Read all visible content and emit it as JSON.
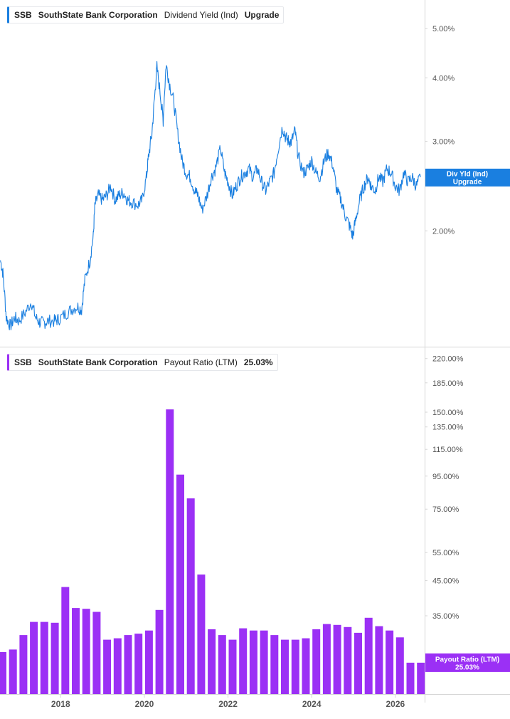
{
  "colors": {
    "yield_line": "#1a7fe0",
    "payout_bars": "#9b30f5",
    "axis": "#d6d6d6",
    "tick_text": "#555555"
  },
  "panels": {
    "top": {
      "ticker": "SSB",
      "company": "SouthState Bank Corporation",
      "metric": "Dividend Yield (Ind)",
      "value": "Upgrade"
    },
    "bottom": {
      "ticker": "SSB",
      "company": "SouthState Bank Corporation",
      "metric": "Payout Ratio (LTM)",
      "value": "25.03%"
    }
  },
  "chart_data": [
    {
      "type": "line",
      "title": "SSB SouthState Bank Corporation Dividend Yield (Ind)",
      "y_scale": "log",
      "ylim": [
        1.25,
        5.6
      ],
      "y_ticks": [
        "5.00%",
        "4.00%",
        "3.00%",
        "2.00%"
      ],
      "y_tick_values": [
        5.0,
        4.0,
        3.0,
        2.0
      ],
      "x_ticks": [
        "2018",
        "2020",
        "2022",
        "2024",
        "2026"
      ],
      "x_tick_values": [
        2018,
        2020,
        2022,
        2024,
        2026
      ],
      "xlim": [
        2016.55,
        2026.7
      ],
      "series": [
        {
          "name": "Div Yld (Ind)",
          "label_value": "Upgrade",
          "points": [
            [
              2016.56,
              1.75
            ],
            [
              2016.62,
              1.65
            ],
            [
              2016.7,
              1.35
            ],
            [
              2016.8,
              1.3
            ],
            [
              2016.9,
              1.35
            ],
            [
              2017.0,
              1.33
            ],
            [
              2017.15,
              1.38
            ],
            [
              2017.3,
              1.45
            ],
            [
              2017.4,
              1.35
            ],
            [
              2017.5,
              1.32
            ],
            [
              2017.6,
              1.32
            ],
            [
              2017.7,
              1.33
            ],
            [
              2017.85,
              1.33
            ],
            [
              2017.95,
              1.34
            ],
            [
              2018.1,
              1.37
            ],
            [
              2018.25,
              1.4
            ],
            [
              2018.4,
              1.42
            ],
            [
              2018.5,
              1.4
            ],
            [
              2018.58,
              1.6
            ],
            [
              2018.7,
              1.75
            ],
            [
              2018.78,
              1.95
            ],
            [
              2018.82,
              2.25
            ],
            [
              2018.9,
              2.35
            ],
            [
              2019.0,
              2.3
            ],
            [
              2019.1,
              2.35
            ],
            [
              2019.2,
              2.45
            ],
            [
              2019.3,
              2.3
            ],
            [
              2019.4,
              2.35
            ],
            [
              2019.5,
              2.38
            ],
            [
              2019.6,
              2.3
            ],
            [
              2019.7,
              2.28
            ],
            [
              2019.85,
              2.25
            ],
            [
              2019.95,
              2.3
            ],
            [
              2020.05,
              2.55
            ],
            [
              2020.1,
              2.8
            ],
            [
              2020.18,
              3.1
            ],
            [
              2020.25,
              3.7
            ],
            [
              2020.3,
              4.2
            ],
            [
              2020.4,
              3.6
            ],
            [
              2020.45,
              3.3
            ],
            [
              2020.52,
              4.25
            ],
            [
              2020.6,
              3.9
            ],
            [
              2020.7,
              3.6
            ],
            [
              2020.8,
              3.1
            ],
            [
              2020.9,
              2.75
            ],
            [
              2021.0,
              2.6
            ],
            [
              2021.1,
              2.55
            ],
            [
              2021.2,
              2.4
            ],
            [
              2021.28,
              2.35
            ],
            [
              2021.38,
              2.2
            ],
            [
              2021.5,
              2.35
            ],
            [
              2021.6,
              2.55
            ],
            [
              2021.7,
              2.65
            ],
            [
              2021.82,
              2.9
            ],
            [
              2021.92,
              2.6
            ],
            [
              2022.0,
              2.5
            ],
            [
              2022.1,
              2.35
            ],
            [
              2022.2,
              2.45
            ],
            [
              2022.3,
              2.55
            ],
            [
              2022.4,
              2.6
            ],
            [
              2022.5,
              2.65
            ],
            [
              2022.6,
              2.55
            ],
            [
              2022.7,
              2.65
            ],
            [
              2022.8,
              2.5
            ],
            [
              2022.9,
              2.4
            ],
            [
              2023.0,
              2.5
            ],
            [
              2023.1,
              2.6
            ],
            [
              2023.2,
              2.9
            ],
            [
              2023.3,
              3.2
            ],
            [
              2023.38,
              3.05
            ],
            [
              2023.45,
              3.0
            ],
            [
              2023.52,
              3.0
            ],
            [
              2023.6,
              3.15
            ],
            [
              2023.68,
              2.8
            ],
            [
              2023.8,
              2.6
            ],
            [
              2023.9,
              2.65
            ],
            [
              2024.0,
              2.75
            ],
            [
              2024.1,
              2.6
            ],
            [
              2024.2,
              2.55
            ],
            [
              2024.3,
              2.75
            ],
            [
              2024.4,
              2.85
            ],
            [
              2024.5,
              2.7
            ],
            [
              2024.6,
              2.4
            ],
            [
              2024.7,
              2.3
            ],
            [
              2024.8,
              2.15
            ],
            [
              2024.9,
              2.05
            ],
            [
              2024.98,
              1.95
            ],
            [
              2025.05,
              2.1
            ],
            [
              2025.15,
              2.3
            ],
            [
              2025.25,
              2.45
            ],
            [
              2025.35,
              2.55
            ],
            [
              2025.42,
              2.45
            ],
            [
              2025.52,
              2.4
            ],
            [
              2025.6,
              2.55
            ],
            [
              2025.7,
              2.5
            ],
            [
              2025.8,
              2.65
            ],
            [
              2025.9,
              2.6
            ],
            [
              2026.0,
              2.45
            ],
            [
              2026.1,
              2.4
            ],
            [
              2026.2,
              2.6
            ],
            [
              2026.3,
              2.5
            ],
            [
              2026.4,
              2.55
            ],
            [
              2026.5,
              2.45
            ],
            [
              2026.6,
              2.55
            ]
          ]
        }
      ]
    },
    {
      "type": "bar",
      "title": "SSB SouthState Bank Corporation Payout Ratio (LTM)",
      "y_scale": "log",
      "ylim": [
        20,
        230
      ],
      "y_ticks": [
        "220.00%",
        "185.00%",
        "150.00%",
        "135.00%",
        "115.00%",
        "95.00%",
        "75.00%",
        "55.00%",
        "45.00%",
        "35.00%"
      ],
      "y_tick_values": [
        220,
        185,
        150,
        135,
        115,
        95,
        75,
        55,
        45,
        35
      ],
      "x_ticks": [
        "2018",
        "2020",
        "2022",
        "2024",
        "2026"
      ],
      "x_tick_values": [
        2018,
        2020,
        2022,
        2024,
        2026
      ],
      "xlim": [
        2016.55,
        2026.7
      ],
      "series": [
        {
          "name": "Payout Ratio (LTM)",
          "label_value": "25.03%",
          "x": [
            2016.61,
            2016.86,
            2017.11,
            2017.36,
            2017.61,
            2017.86,
            2018.11,
            2018.36,
            2018.61,
            2018.86,
            2019.11,
            2019.36,
            2019.61,
            2019.86,
            2020.11,
            2020.36,
            2020.61,
            2020.86,
            2021.11,
            2021.36,
            2021.61,
            2021.86,
            2022.11,
            2022.36,
            2022.61,
            2022.86,
            2023.11,
            2023.36,
            2023.61,
            2023.86,
            2024.11,
            2024.36,
            2024.61,
            2024.86,
            2025.11,
            2025.36,
            2025.61,
            2025.86,
            2026.11,
            2026.36,
            2026.61
          ],
          "values": [
            27,
            27.5,
            30.5,
            33.5,
            33.5,
            33.3,
            43,
            37,
            36.8,
            36,
            29.5,
            29.8,
            30.5,
            30.8,
            31.5,
            36.5,
            153,
            96,
            81,
            47,
            31.8,
            30.5,
            29.5,
            32,
            31.5,
            31.5,
            30.5,
            29.5,
            29.5,
            29.8,
            31.8,
            33,
            32.8,
            32.3,
            31,
            34.5,
            32.5,
            31.5,
            30,
            25.03,
            25.03
          ]
        }
      ]
    }
  ]
}
